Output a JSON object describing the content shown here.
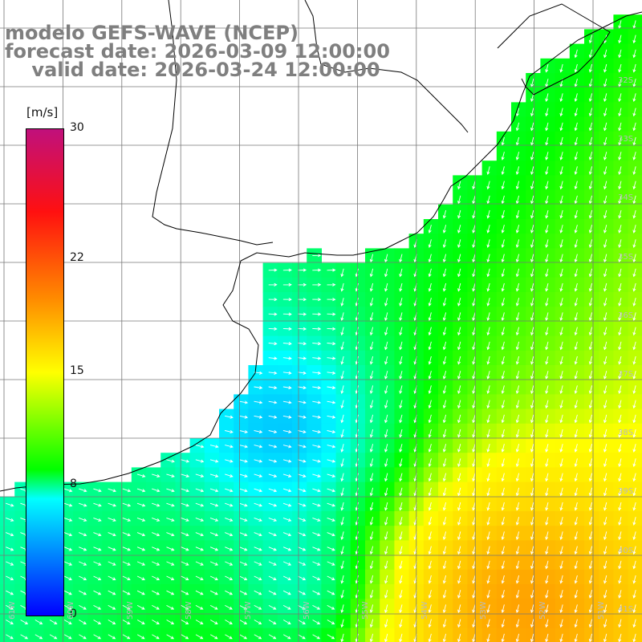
{
  "title": {
    "line1": "modelo GEFS-WAVE (NCEP)",
    "line2": "forecast date: 2026-03-09 12:00:00",
    "line3": "    valid date: 2026-03-24 12:00:00"
  },
  "legend": {
    "unit": "[m/s]",
    "ticks": [
      {
        "label": "30",
        "value": 30
      },
      {
        "label": "22",
        "value": 22
      },
      {
        "label": "15",
        "value": 15
      },
      {
        "label": "8",
        "value": 8
      },
      {
        "label": "0",
        "value": 0
      }
    ]
  },
  "lat_labels": [
    "32S",
    "33S",
    "34S",
    "35S",
    "36S",
    "37S",
    "38S",
    "39S",
    "40S",
    "41S"
  ],
  "lon_labels": [
    "61W",
    "60W",
    "59W",
    "58W",
    "57W",
    "56W",
    "55W",
    "54W",
    "53W",
    "52W",
    "51W"
  ],
  "colors": {
    "land": "#ffffff",
    "grid": "#777777",
    "coast": "#000000",
    "arrow": "#ffffff",
    "label": "#bbbbbb"
  }
}
